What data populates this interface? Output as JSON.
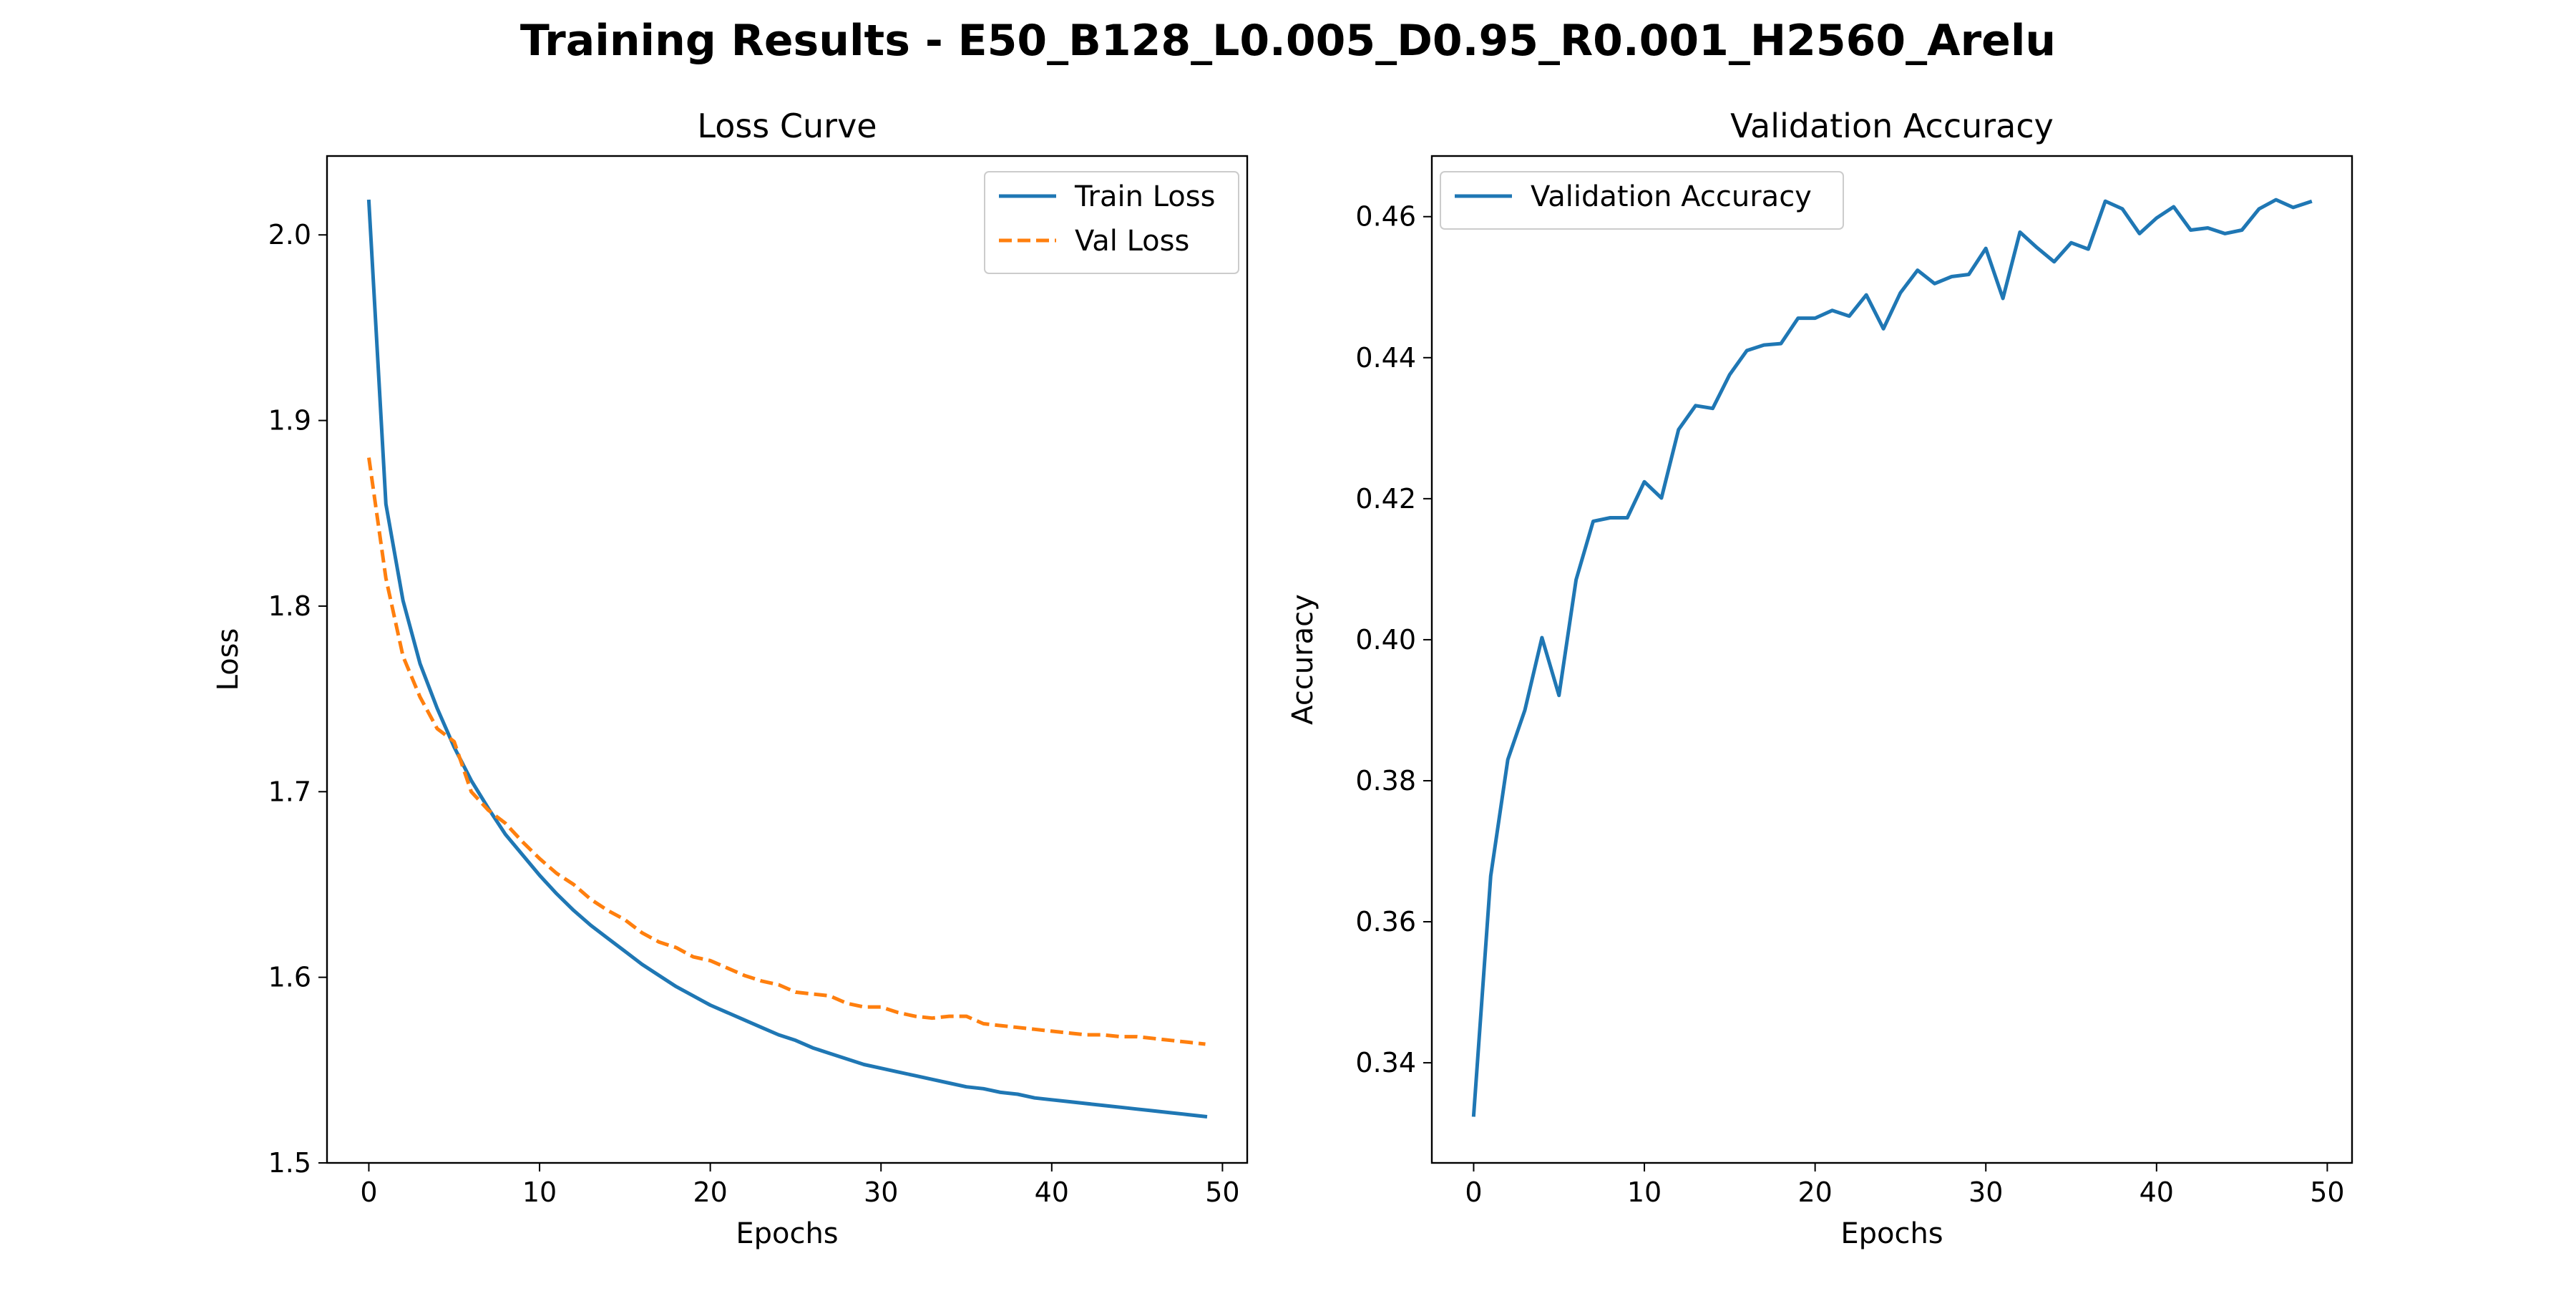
{
  "figure": {
    "title": "Training Results - E50_B128_L0.005_D0.95_R0.001_H2560_Arelu"
  },
  "colors": {
    "blue": "#1f77b4",
    "orange": "#ff7f0e"
  },
  "chart_data": [
    {
      "type": "line",
      "title": "Loss Curve",
      "xlabel": "Epochs",
      "ylabel": "Loss",
      "xlim": [
        -2.45,
        51.45
      ],
      "ylim": [
        1.5,
        2.0425
      ],
      "xticks": [
        0,
        10,
        20,
        30,
        40,
        50
      ],
      "yticks": [
        1.5,
        1.6,
        1.7,
        1.8,
        1.9,
        2.0
      ],
      "ytick_decimals": 1,
      "legend": "top-right",
      "grid": false,
      "x": [
        0,
        1,
        2,
        3,
        4,
        5,
        6,
        7,
        8,
        9,
        10,
        11,
        12,
        13,
        14,
        15,
        16,
        17,
        18,
        19,
        20,
        21,
        22,
        23,
        24,
        25,
        26,
        27,
        28,
        29,
        30,
        31,
        32,
        33,
        34,
        35,
        36,
        37,
        38,
        39,
        40,
        41,
        42,
        43,
        44,
        45,
        46,
        47,
        48,
        49
      ],
      "series": [
        {
          "name": "Train Loss",
          "color": "#1f77b4",
          "dash": "solid",
          "values": [
            2.018,
            1.855,
            1.803,
            1.769,
            1.745,
            1.724,
            1.706,
            1.691,
            1.677,
            1.666,
            1.655,
            1.645,
            1.636,
            1.628,
            1.621,
            1.614,
            1.607,
            1.601,
            1.595,
            1.59,
            1.585,
            1.581,
            1.577,
            1.573,
            1.569,
            1.566,
            1.562,
            1.559,
            1.556,
            1.553,
            1.551,
            1.549,
            1.547,
            1.545,
            1.543,
            1.541,
            1.54,
            1.538,
            1.537,
            1.535,
            1.534,
            1.533,
            1.532,
            1.531,
            1.53,
            1.529,
            1.528,
            1.527,
            1.526,
            1.525
          ]
        },
        {
          "name": "Val Loss",
          "color": "#ff7f0e",
          "dash": "dashed",
          "values": [
            1.88,
            1.815,
            1.773,
            1.751,
            1.734,
            1.727,
            1.7,
            1.69,
            1.683,
            1.673,
            1.664,
            1.656,
            1.65,
            1.642,
            1.636,
            1.631,
            1.624,
            1.619,
            1.616,
            1.611,
            1.609,
            1.605,
            1.601,
            1.598,
            1.596,
            1.592,
            1.591,
            1.59,
            1.586,
            1.584,
            1.584,
            1.581,
            1.579,
            1.578,
            1.579,
            1.579,
            1.575,
            1.574,
            1.573,
            1.572,
            1.571,
            1.57,
            1.569,
            1.569,
            1.568,
            1.568,
            1.567,
            1.566,
            1.565,
            1.564
          ]
        }
      ]
    },
    {
      "type": "line",
      "title": "Validation Accuracy",
      "xlabel": "Epochs",
      "ylabel": "Accuracy",
      "xlim": [
        -2.45,
        51.45
      ],
      "ylim": [
        0.3258,
        0.4686
      ],
      "xticks": [
        0,
        10,
        20,
        30,
        40,
        50
      ],
      "yticks": [
        0.34,
        0.36,
        0.38,
        0.4,
        0.42,
        0.44,
        0.46
      ],
      "ytick_decimals": 2,
      "legend": "top-left",
      "grid": false,
      "x": [
        0,
        1,
        2,
        3,
        4,
        5,
        6,
        7,
        8,
        9,
        10,
        11,
        12,
        13,
        14,
        15,
        16,
        17,
        18,
        19,
        20,
        21,
        22,
        23,
        24,
        25,
        26,
        27,
        28,
        29,
        30,
        31,
        32,
        33,
        34,
        35,
        36,
        37,
        38,
        39,
        40,
        41,
        42,
        43,
        44,
        45,
        46,
        47,
        48,
        49
      ],
      "series": [
        {
          "name": "Validation Accuracy",
          "color": "#1f77b4",
          "dash": "solid",
          "values": [
            0.3326,
            0.3665,
            0.383,
            0.39,
            0.4003,
            0.3921,
            0.4085,
            0.4168,
            0.4173,
            0.4173,
            0.4224,
            0.4201,
            0.4298,
            0.4332,
            0.4328,
            0.4376,
            0.441,
            0.4418,
            0.442,
            0.4456,
            0.4456,
            0.4467,
            0.4459,
            0.4489,
            0.4441,
            0.4492,
            0.4524,
            0.4505,
            0.4515,
            0.4518,
            0.4555,
            0.4484,
            0.4578,
            0.4556,
            0.4536,
            0.4563,
            0.4554,
            0.4622,
            0.4611,
            0.4576,
            0.4598,
            0.4614,
            0.4581,
            0.4584,
            0.4576,
            0.4581,
            0.4611,
            0.4624,
            0.4613,
            0.4621
          ]
        }
      ]
    }
  ]
}
